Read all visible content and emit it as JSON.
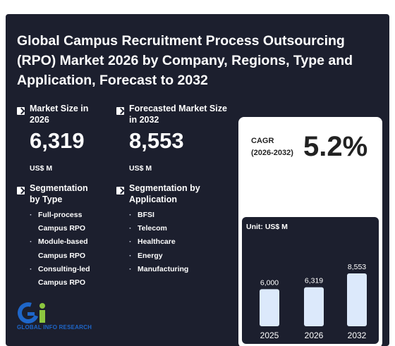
{
  "title": "Global Campus Recruitment Process Outsourcing (RPO) Market 2026 by Company, Regions, Type and Application, Forecast to 2032",
  "market_size": {
    "label": "Market Size in 2026",
    "value": "6,319",
    "unit": "US$ M"
  },
  "forecast_size": {
    "label": "Forecasted Market Size in 2032",
    "value": "8,553",
    "unit": "US$ M"
  },
  "segmentation_type": {
    "label": "Segmentation by Type",
    "items": [
      "Full-process Campus RPO",
      "Module-based Campus RPO",
      "Consulting-led Campus RPO"
    ]
  },
  "segmentation_application": {
    "label": "Segmentation by Application",
    "items": [
      "BFSI",
      "Telecom",
      "Healthcare",
      "Energy",
      "Manufacturing"
    ]
  },
  "cagr": {
    "label_line1": "CAGR",
    "label_line2": "(2026-2032)",
    "value": "5.2%"
  },
  "logo": {
    "text": "GLOBAL INFO RESEARCH"
  },
  "colors": {
    "background": "#1c1f2e",
    "bar": "#dce9fb",
    "logo_blue": "#1e66c9",
    "logo_green": "#8cc63f"
  },
  "chart_data": {
    "type": "bar",
    "unit_label": "Unit: US$ M",
    "categories": [
      "2025",
      "2026",
      "2032"
    ],
    "values": [
      6000,
      6319,
      8553
    ],
    "value_labels": [
      "6,000",
      "6,319",
      "8,553"
    ],
    "ylim": [
      0,
      8553
    ],
    "grid": false
  }
}
